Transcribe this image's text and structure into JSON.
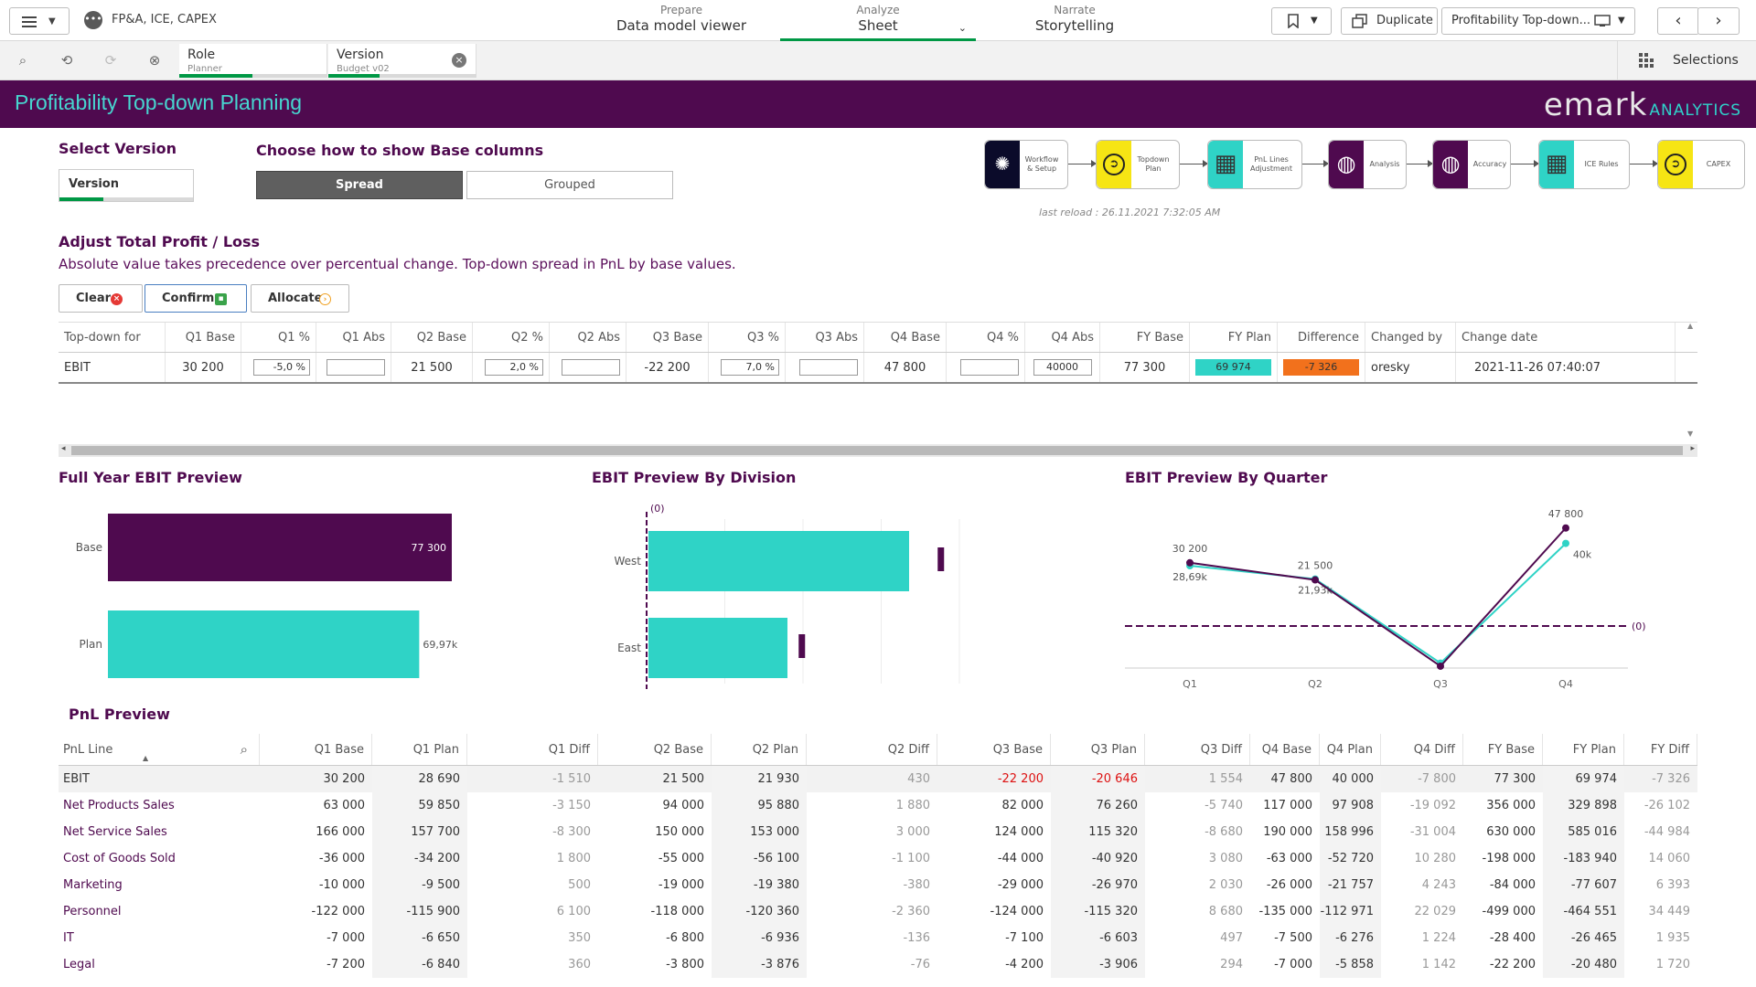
{
  "app": {
    "name": "FP&A, ICE, CAPEX"
  },
  "modes": [
    {
      "small": "Prepare",
      "big": "Data model viewer"
    },
    {
      "small": "Analyze",
      "big": "Sheet"
    },
    {
      "small": "Narrate",
      "big": "Storytelling"
    }
  ],
  "toolbar": {
    "duplicate": "Duplicate",
    "sheet_name": "Profitability Top-down..."
  },
  "selections": {
    "label": "Selections",
    "chips": [
      {
        "field": "Role",
        "value": "Planner"
      },
      {
        "field": "Version",
        "value": "Budget v02"
      }
    ]
  },
  "header": {
    "title": "Profitability Top-down Planning",
    "logo_main": "emark",
    "logo_sub": "ANALYTICS"
  },
  "version": {
    "heading": "Select Version",
    "box_label": "Version"
  },
  "base_columns": {
    "heading": "Choose how to show Base columns",
    "options": [
      "Spread",
      "Grouped"
    ],
    "selected": "Spread"
  },
  "workflow": {
    "steps": [
      {
        "label": "Workflow & Setup",
        "icon": "lightbulb-icon",
        "glyph": "✺"
      },
      {
        "label": "Topdown Plan",
        "icon": "arrow-circle-icon",
        "glyph": "➲"
      },
      {
        "label": "PnL Lines Adjustment",
        "icon": "grid-icon",
        "glyph": "▦"
      },
      {
        "label": "Analysis",
        "icon": "globe-icon",
        "glyph": "◍"
      },
      {
        "label": "Accuracy",
        "icon": "globe-icon",
        "glyph": "◍"
      },
      {
        "label": "ICE Rules",
        "icon": "grid-icon",
        "glyph": "▦"
      },
      {
        "label": "CAPEX",
        "icon": "arrow-circle-icon",
        "glyph": "➲"
      }
    ],
    "last_reload": "last reload : 26.11.2021 7:32:05 AM"
  },
  "adjust": {
    "heading": "Adjust Total Profit / Loss",
    "description": "Absolute value takes precedence over percentual change. Top-down spread in PnL by base values.",
    "buttons": [
      "Clear",
      "Confirm",
      "Allocate"
    ],
    "columns": [
      "Top-down for",
      "Q1 Base",
      "Q1 %",
      "Q1 Abs",
      "Q2 Base",
      "Q2 %",
      "Q2 Abs",
      "Q3 Base",
      "Q3 %",
      "Q3 Abs",
      "Q4 Base",
      "Q4 %",
      "Q4 Abs",
      "FY Base",
      "FY Plan",
      "Difference",
      "Changed by",
      "Change date"
    ],
    "row": {
      "topdown": "EBIT",
      "q1_base": "30 200",
      "q1_pct": "-5,0 %",
      "q1_abs": "",
      "q2_base": "21 500",
      "q2_pct": "2,0 %",
      "q2_abs": "",
      "q3_base": "-22 200",
      "q3_pct": "7,0 %",
      "q3_abs": "",
      "q4_base": "47 800",
      "q4_pct": "",
      "q4_abs": "40000",
      "fy_base": "77 300",
      "fy_plan": "69 974",
      "difference": "-7 326",
      "changed_by": "oresky",
      "change_date": "2021-11-26 07:40:07"
    }
  },
  "charts": {
    "full_year": {
      "title": "Full Year EBIT Preview"
    },
    "division": {
      "title": "EBIT Preview By Division",
      "zero_label": "(0)"
    },
    "quarter": {
      "title": "EBIT Preview By Quarter",
      "zero_label": "(0)"
    }
  },
  "chart_data": [
    {
      "type": "bar",
      "title": "Full Year EBIT Preview",
      "categories": [
        "Base",
        "Plan"
      ],
      "values": [
        77300,
        69974
      ],
      "labels": [
        "77 300",
        "69,97k"
      ],
      "colors": [
        "#4f0a4f",
        "#2fd3c6"
      ]
    },
    {
      "type": "bar",
      "title": "EBIT Preview By Division",
      "categories": [
        "West",
        "East"
      ],
      "values": [
        60000,
        32000
      ],
      "markers": [
        67000,
        35000
      ],
      "zero_label": "(0)",
      "xlim": [
        0,
        80000
      ]
    },
    {
      "type": "line",
      "title": "EBIT Preview By Quarter",
      "categories": [
        "Q1",
        "Q2",
        "Q3",
        "Q4"
      ],
      "series": [
        {
          "values": [
            30200,
            21500,
            -22200,
            47800
          ],
          "labels": [
            "30 200",
            "21 500",
            "",
            "47 800"
          ],
          "color": "#4f0a4f"
        },
        {
          "values": [
            28690,
            21930,
            -20646,
            40000
          ],
          "labels": [
            "28,69k",
            "21,93k",
            "",
            "40k"
          ],
          "color": "#2fd3c6"
        }
      ],
      "zero_label": "(0)",
      "ylim": [
        -25000,
        50000
      ]
    }
  ],
  "pnl": {
    "title": "PnL Preview",
    "columns": [
      "PnL Line",
      "Q1 Base",
      "Q1 Plan",
      "Q1 Diff",
      "Q2 Base",
      "Q2 Plan",
      "Q2 Diff",
      "Q3 Base",
      "Q3 Plan",
      "Q3 Diff",
      "Q4 Base",
      "Q4 Plan",
      "Q4 Diff",
      "FY Base",
      "FY Plan",
      "FY Diff"
    ],
    "rows": [
      [
        "EBIT",
        "30 200",
        "28 690",
        "-1 510",
        "21 500",
        "21 930",
        "430",
        "-22 200",
        "-20 646",
        "1 554",
        "47 800",
        "40 000",
        "-7 800",
        "77 300",
        "69 974",
        "-7 326"
      ],
      [
        "Net Products Sales",
        "63 000",
        "59 850",
        "-3 150",
        "94 000",
        "95 880",
        "1 880",
        "82 000",
        "76 260",
        "-5 740",
        "117 000",
        "97 908",
        "-19 092",
        "356 000",
        "329 898",
        "-26 102"
      ],
      [
        "Net Service Sales",
        "166 000",
        "157 700",
        "-8 300",
        "150 000",
        "153 000",
        "3 000",
        "124 000",
        "115 320",
        "-8 680",
        "190 000",
        "158 996",
        "-31 004",
        "630 000",
        "585 016",
        "-44 984"
      ],
      [
        "Cost of Goods Sold",
        "-36 000",
        "-34 200",
        "1 800",
        "-55 000",
        "-56 100",
        "-1 100",
        "-44 000",
        "-40 920",
        "3 080",
        "-63 000",
        "-52 720",
        "10 280",
        "-198 000",
        "-183 940",
        "14 060"
      ],
      [
        "Marketing",
        "-10 000",
        "-9 500",
        "500",
        "-19 000",
        "-19 380",
        "-380",
        "-29 000",
        "-26 970",
        "2 030",
        "-26 000",
        "-21 757",
        "4 243",
        "-84 000",
        "-77 607",
        "6 393"
      ],
      [
        "Personnel",
        "-122 000",
        "-115 900",
        "6 100",
        "-118 000",
        "-120 360",
        "-2 360",
        "-124 000",
        "-115 320",
        "8 680",
        "-135 000",
        "-112 971",
        "22 029",
        "-499 000",
        "-464 551",
        "34 449"
      ],
      [
        "IT",
        "-7 000",
        "-6 650",
        "350",
        "-6 800",
        "-6 936",
        "-136",
        "-7 100",
        "-6 603",
        "497",
        "-7 500",
        "-6 276",
        "1 224",
        "-28 400",
        "-26 465",
        "1 935"
      ],
      [
        "Legal",
        "-7 200",
        "-6 840",
        "360",
        "-3 800",
        "-3 876",
        "-76",
        "-4 200",
        "-3 906",
        "294",
        "-7 000",
        "-5 858",
        "1 142",
        "-22 200",
        "-20 480",
        "1 720"
      ]
    ]
  }
}
